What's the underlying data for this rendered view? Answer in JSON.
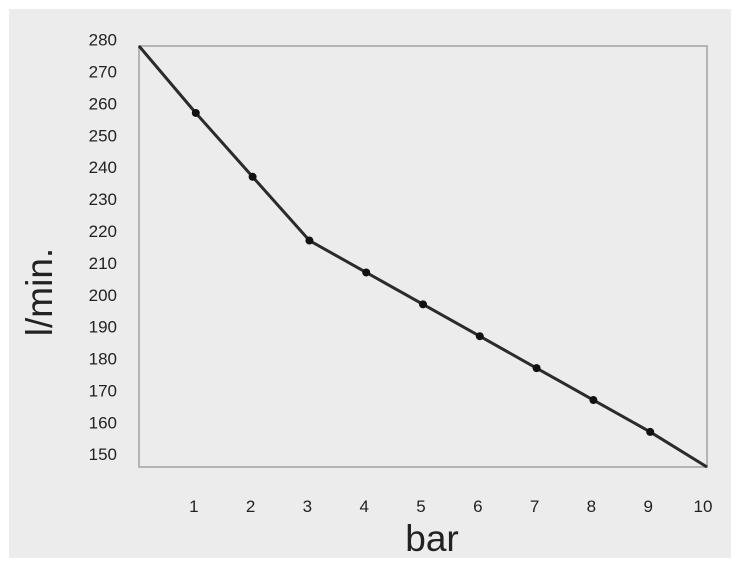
{
  "chart_data": {
    "type": "line",
    "title": "",
    "xlabel": "bar",
    "ylabel": "l/min.",
    "x": [
      0,
      1,
      2,
      3,
      4,
      5,
      6,
      7,
      8,
      9,
      10
    ],
    "series": [
      {
        "values": [
          278,
          257,
          237,
          217,
          207,
          197,
          187,
          177,
          167,
          157,
          146
        ]
      }
    ],
    "markers_at_x": [
      1,
      2,
      3,
      4,
      5,
      6,
      7,
      8,
      9
    ],
    "xlim": [
      0,
      10
    ],
    "ylim": [
      146,
      278
    ],
    "xticks": [
      1,
      2,
      3,
      4,
      5,
      6,
      7,
      8,
      9,
      10
    ],
    "yticks": [
      280,
      270,
      260,
      250,
      240,
      230,
      220,
      210,
      200,
      190,
      180,
      170,
      160,
      150
    ],
    "grid": false,
    "legend": "none",
    "colors": {
      "line": "#2b2b2b",
      "marker": "#111111",
      "frame": "#b4b4b4",
      "background": "#ececec"
    }
  }
}
